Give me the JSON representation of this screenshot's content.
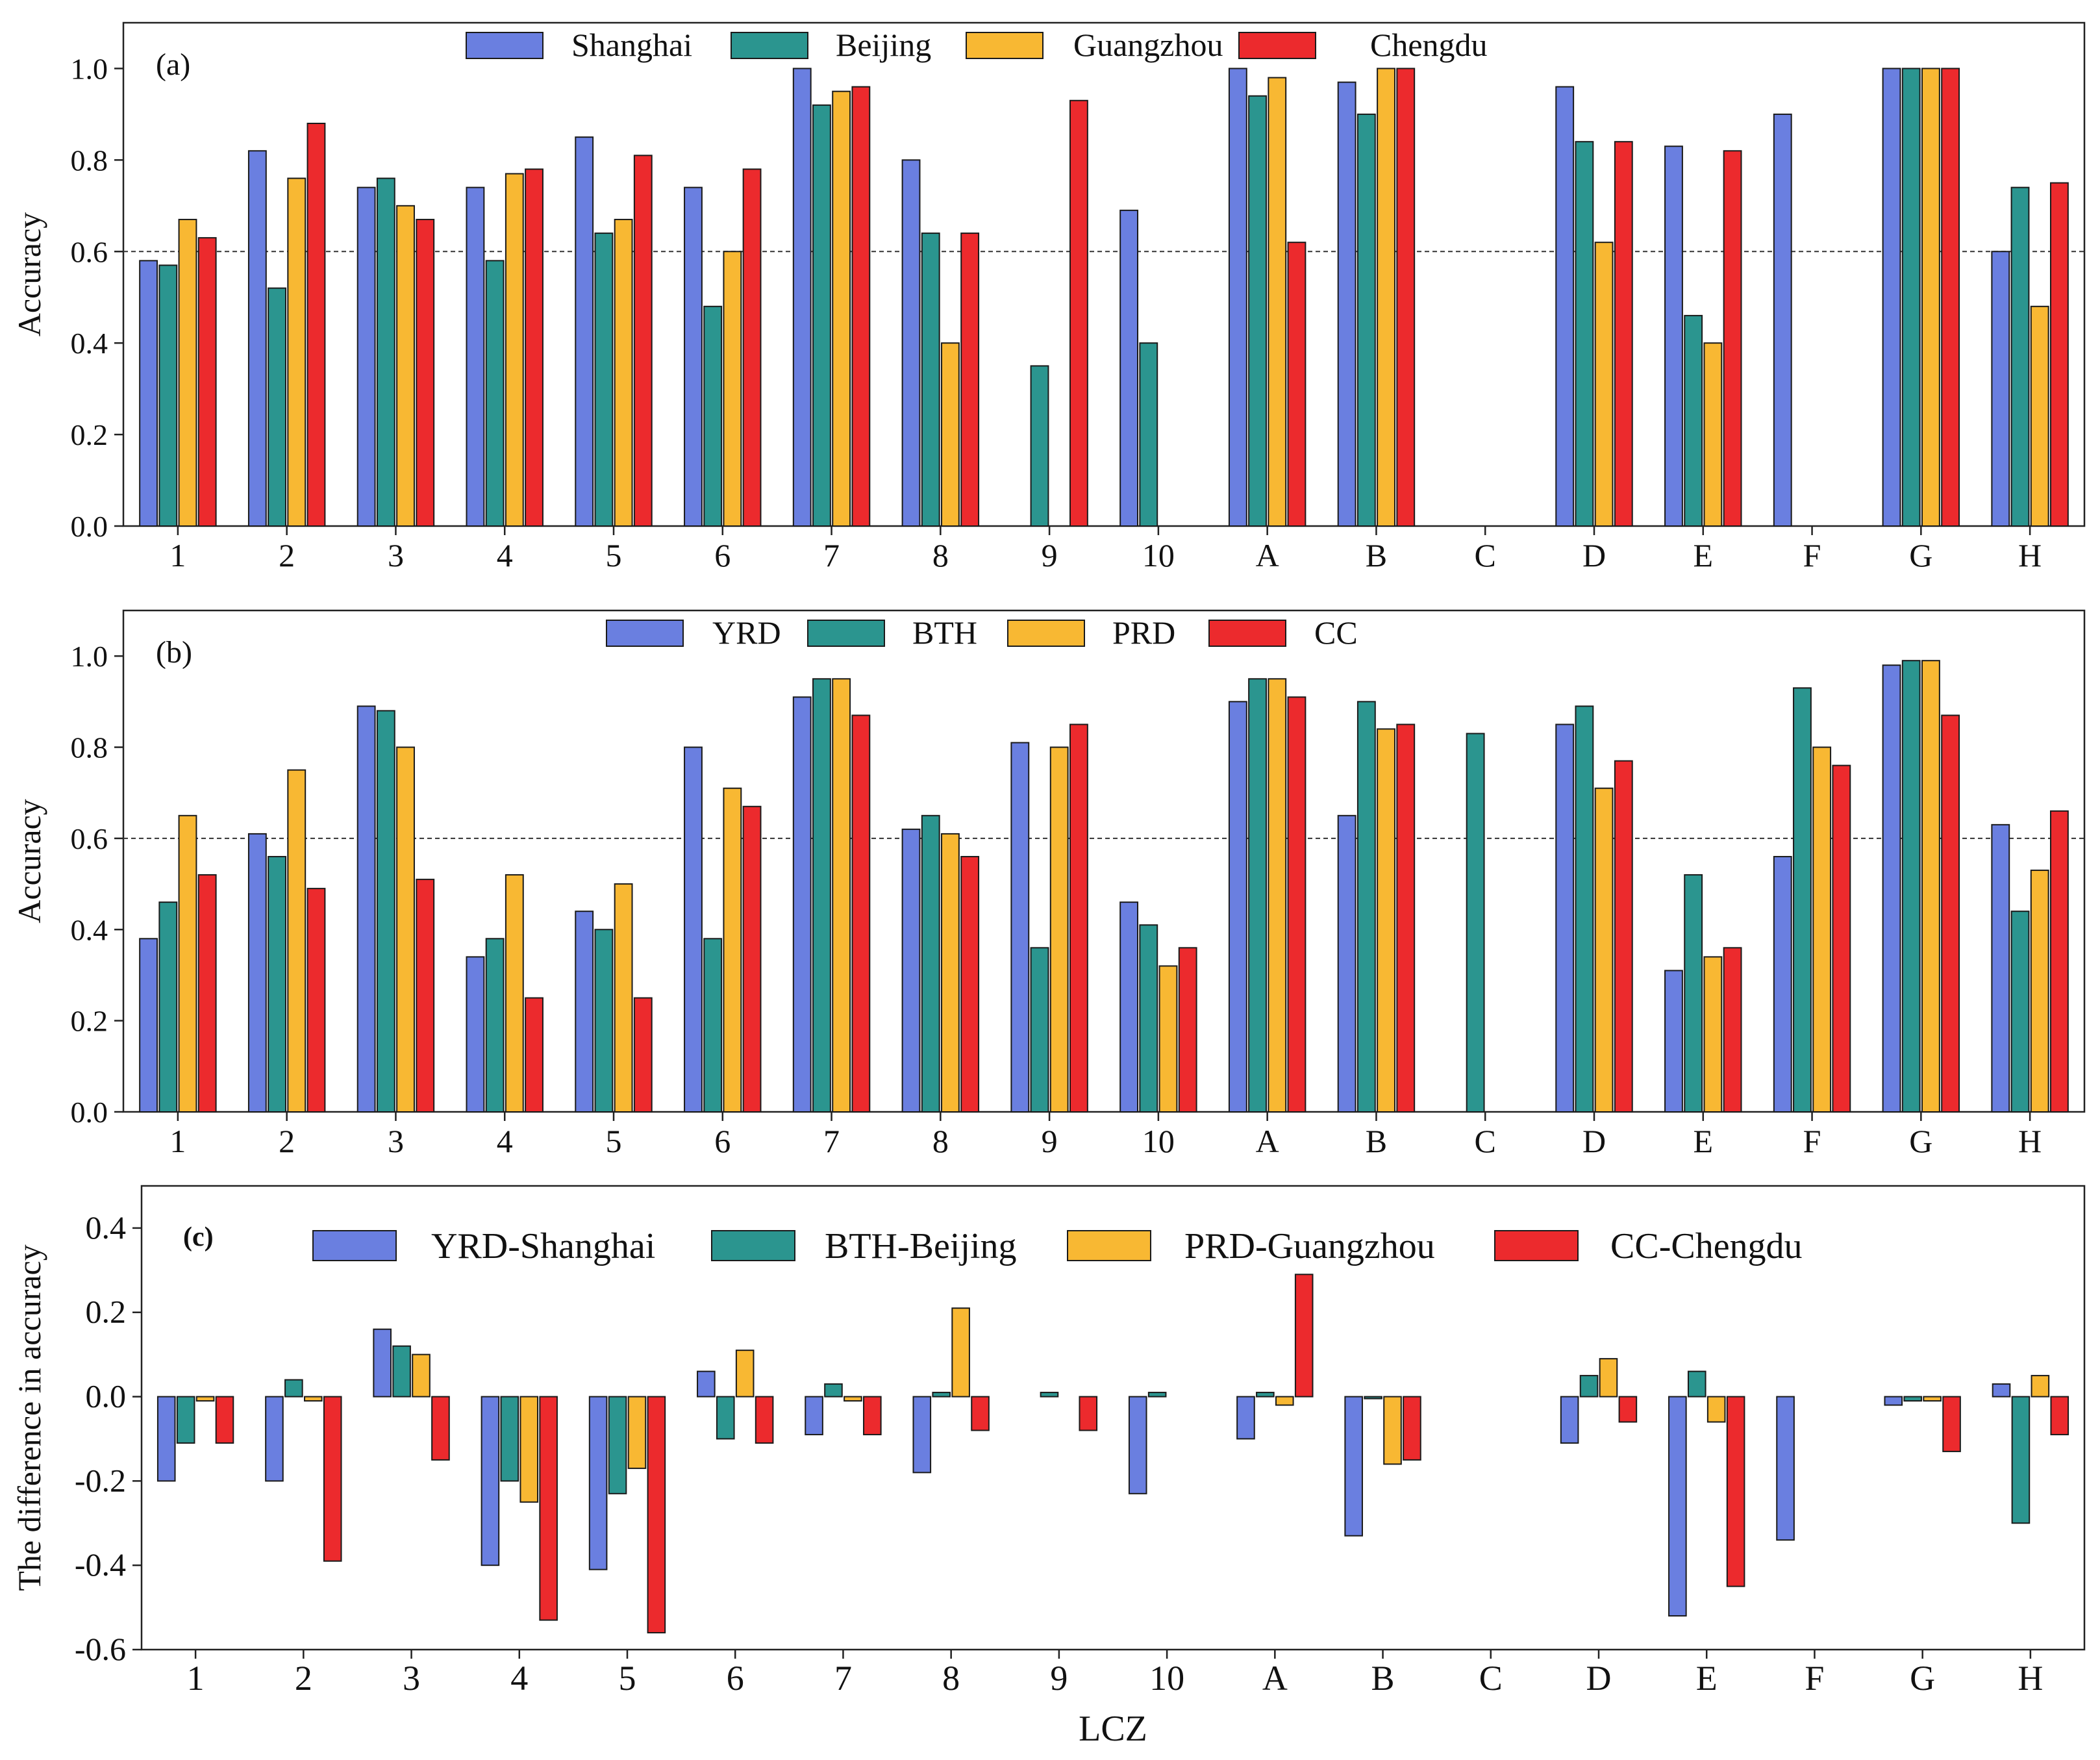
{
  "colors": {
    "blue": "#6a7fe0",
    "teal": "#2b958f",
    "orange": "#f8b833",
    "red": "#ec2a2d"
  },
  "chart_data": [
    {
      "type": "bar",
      "panel_label": "(a)",
      "xlabel": "",
      "ylabel": "Accuracy",
      "ylim": [
        0,
        1.1
      ],
      "yticks": [
        0.0,
        0.2,
        0.4,
        0.6,
        0.8,
        1.0
      ],
      "ytick_labels": [
        "0.0",
        "0.2",
        "0.4",
        "0.6",
        "0.8",
        "1.0"
      ],
      "reference_line": 0.6,
      "legend_position": "top-center",
      "categories": [
        "1",
        "2",
        "3",
        "4",
        "5",
        "6",
        "7",
        "8",
        "9",
        "10",
        "A",
        "B",
        "C",
        "D",
        "E",
        "F",
        "G",
        "H"
      ],
      "series": [
        {
          "name": "Shanghai",
          "values": [
            0.58,
            0.82,
            0.74,
            0.74,
            0.85,
            0.74,
            1.0,
            0.8,
            null,
            0.69,
            1.0,
            0.97,
            null,
            0.96,
            0.83,
            0.9,
            1.0,
            0.6
          ]
        },
        {
          "name": "Beijing",
          "values": [
            0.57,
            0.52,
            0.76,
            0.58,
            0.64,
            0.48,
            0.92,
            0.64,
            0.35,
            0.4,
            0.94,
            0.9,
            null,
            0.84,
            0.46,
            null,
            1.0,
            0.74
          ]
        },
        {
          "name": "Guangzhou",
          "values": [
            0.67,
            0.76,
            0.7,
            0.77,
            0.67,
            0.6,
            0.95,
            0.4,
            null,
            null,
            0.98,
            1.0,
            null,
            0.62,
            0.4,
            null,
            1.0,
            0.48
          ]
        },
        {
          "name": "Chengdu",
          "values": [
            0.63,
            0.88,
            0.67,
            0.78,
            0.81,
            0.78,
            0.96,
            0.64,
            0.93,
            null,
            0.62,
            1.0,
            null,
            0.84,
            0.82,
            null,
            1.0,
            0.75
          ]
        }
      ]
    },
    {
      "type": "bar",
      "panel_label": "(b)",
      "xlabel": "",
      "ylabel": "Accuracy",
      "ylim": [
        0,
        1.1
      ],
      "yticks": [
        0.0,
        0.2,
        0.4,
        0.6,
        0.8,
        1.0
      ],
      "ytick_labels": [
        "0.0",
        "0.2",
        "0.4",
        "0.6",
        "0.8",
        "1.0"
      ],
      "reference_line": 0.6,
      "legend_position": "top-center",
      "categories": [
        "1",
        "2",
        "3",
        "4",
        "5",
        "6",
        "7",
        "8",
        "9",
        "10",
        "A",
        "B",
        "C",
        "D",
        "E",
        "F",
        "G",
        "H"
      ],
      "series": [
        {
          "name": "YRD",
          "values": [
            0.38,
            0.61,
            0.89,
            0.34,
            0.44,
            0.8,
            0.91,
            0.62,
            0.81,
            0.46,
            0.9,
            0.65,
            null,
            0.85,
            0.31,
            0.56,
            0.98,
            0.63
          ]
        },
        {
          "name": "BTH",
          "values": [
            0.46,
            0.56,
            0.88,
            0.38,
            0.4,
            0.38,
            0.95,
            0.65,
            0.36,
            0.41,
            0.95,
            0.9,
            0.83,
            0.89,
            0.52,
            0.93,
            0.99,
            0.44
          ]
        },
        {
          "name": "PRD",
          "values": [
            0.65,
            0.75,
            0.8,
            0.52,
            0.5,
            0.71,
            0.95,
            0.61,
            0.8,
            0.32,
            0.95,
            0.84,
            null,
            0.71,
            0.34,
            0.8,
            0.99,
            0.53
          ]
        },
        {
          "name": "CC",
          "values": [
            0.52,
            0.49,
            0.51,
            0.25,
            0.25,
            0.67,
            0.87,
            0.56,
            0.85,
            0.36,
            0.91,
            0.85,
            null,
            0.77,
            0.36,
            0.76,
            0.87,
            0.66
          ]
        }
      ]
    },
    {
      "type": "bar",
      "panel_label": "(c)",
      "xlabel": "LCZ",
      "ylabel": "The difference in accuracy",
      "ylim": [
        -0.6,
        0.5
      ],
      "yticks": [
        -0.6,
        -0.4,
        -0.2,
        0.0,
        0.2,
        0.4
      ],
      "ytick_labels": [
        "-0.6",
        "-0.4",
        "-0.2",
        "0.0",
        "0.2",
        "0.4"
      ],
      "legend_position": "top-center",
      "categories": [
        "1",
        "2",
        "3",
        "4",
        "5",
        "6",
        "7",
        "8",
        "9",
        "10",
        "A",
        "B",
        "C",
        "D",
        "E",
        "F",
        "G",
        "H"
      ],
      "series": [
        {
          "name": "YRD-Shanghai",
          "values": [
            -0.2,
            -0.2,
            0.16,
            -0.4,
            -0.41,
            0.06,
            -0.09,
            -0.18,
            null,
            -0.23,
            -0.1,
            -0.33,
            null,
            -0.11,
            -0.52,
            -0.34,
            -0.02,
            0.03
          ]
        },
        {
          "name": "BTH-Beijing",
          "values": [
            -0.11,
            0.04,
            0.12,
            -0.2,
            -0.23,
            -0.1,
            0.03,
            0.01,
            0.01,
            0.01,
            0.01,
            0.0,
            null,
            0.05,
            0.06,
            null,
            -0.01,
            -0.3
          ]
        },
        {
          "name": "PRD-Guangzhou",
          "values": [
            -0.01,
            -0.01,
            0.1,
            -0.25,
            -0.17,
            0.11,
            -0.01,
            0.21,
            null,
            null,
            -0.02,
            -0.16,
            null,
            0.09,
            -0.06,
            null,
            -0.01,
            0.05
          ]
        },
        {
          "name": "CC-Chengdu",
          "values": [
            -0.11,
            -0.39,
            -0.15,
            -0.53,
            -0.56,
            -0.11,
            -0.09,
            -0.08,
            -0.08,
            null,
            0.29,
            -0.15,
            null,
            -0.06,
            -0.45,
            null,
            -0.13,
            -0.09
          ]
        }
      ]
    }
  ]
}
